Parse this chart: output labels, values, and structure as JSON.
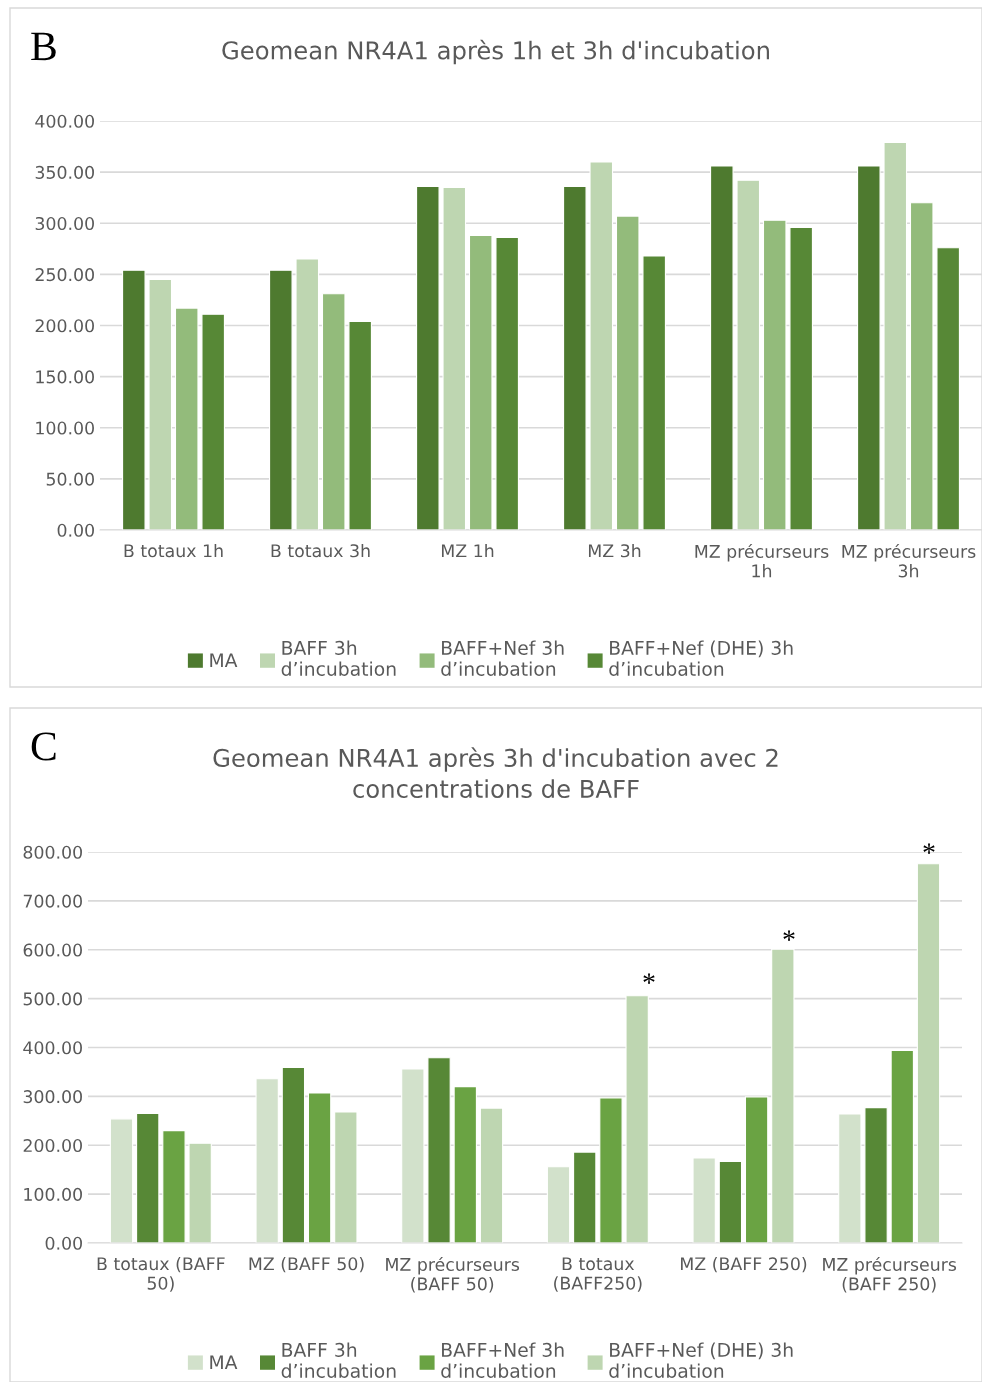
{
  "chart_data": [
    {
      "type": "bar",
      "title": "Geomean NR4A1 après 1h et 3h d'incubation",
      "categories": [
        "B totaux 1h",
        "B totaux 3h",
        "MZ 1h",
        "MZ 3h",
        "MZ précurseurs\n1h",
        "MZ précurseurs\n3h"
      ],
      "series": [
        {
          "name": "MA",
          "color": "#4e7a2f",
          "values": [
            254,
            254,
            336,
            336,
            356,
            356
          ]
        },
        {
          "name": "BAFF 3h\nd’incubation",
          "color": "#bed6b1",
          "values": [
            245,
            265,
            335,
            360,
            342,
            379
          ]
        },
        {
          "name": "BAFF+Nef 3h\nd’incubation",
          "color": "#93bb7b",
          "values": [
            217,
            231,
            288,
            307,
            303,
            320
          ]
        },
        {
          "name": "BAFF+Nef (DHE) 3h\nd’incubation",
          "color": "#578836",
          "values": [
            211,
            204,
            286,
            268,
            296,
            276
          ]
        }
      ],
      "ylim": [
        0,
        400
      ],
      "yticks": [
        {
          "value": 0,
          "label": "0.00"
        },
        {
          "value": 50,
          "label": "50.00"
        },
        {
          "value": 100,
          "label": "100.00"
        },
        {
          "value": 150,
          "label": "150.00"
        },
        {
          "value": 200,
          "label": "200.00"
        },
        {
          "value": 250,
          "label": "250.00"
        },
        {
          "value": 300,
          "label": "300.00"
        },
        {
          "value": 350,
          "label": "350.00"
        },
        {
          "value": 400,
          "label": "400.00"
        }
      ],
      "grid": "y",
      "legend": "bottom",
      "annotations": [
        "B"
      ]
    },
    {
      "type": "bar",
      "title": "Geomean NR4A1 après 3h d'incubation avec 2\nconcentrations de BAFF",
      "categories": [
        "B totaux (BAFF\n50)",
        "MZ (BAFF 50)",
        "MZ précurseurs\n(BAFF 50)",
        "B totaux\n(BAFF250)",
        "MZ (BAFF 250)",
        "MZ précurseurs\n(BAFF 250)"
      ],
      "series": [
        {
          "name": "MA",
          "color": "#d2e1cb",
          "values": [
            254,
            336,
            356,
            156,
            174,
            264
          ]
        },
        {
          "name": "BAFF 3h\nd’incubation",
          "color": "#578836",
          "values": [
            265,
            359,
            379,
            186,
            167,
            277
          ]
        },
        {
          "name": "BAFF+Nef 3h\nd’incubation",
          "color": "#6aa343",
          "values": [
            230,
            307,
            320,
            297,
            299,
            394
          ]
        },
        {
          "name": "BAFF+Nef (DHE) 3h\nd’incubation",
          "color": "#bed6b1",
          "values": [
            204,
            268,
            276,
            506,
            601,
            776
          ]
        }
      ],
      "ylim": [
        0,
        800
      ],
      "yticks": [
        {
          "value": 0,
          "label": "0.00"
        },
        {
          "value": 100,
          "label": "100.00"
        },
        {
          "value": 200,
          "label": "200.00"
        },
        {
          "value": 300,
          "label": "300.00"
        },
        {
          "value": 400,
          "label": "400.00"
        },
        {
          "value": 500,
          "label": "500.00"
        },
        {
          "value": 600,
          "label": "600.00"
        },
        {
          "value": 700,
          "label": "700.00"
        },
        {
          "value": 800,
          "label": "800.00"
        }
      ],
      "grid": "y",
      "legend": "bottom",
      "annotations": [
        "C",
        "*",
        "*",
        "*"
      ]
    }
  ]
}
